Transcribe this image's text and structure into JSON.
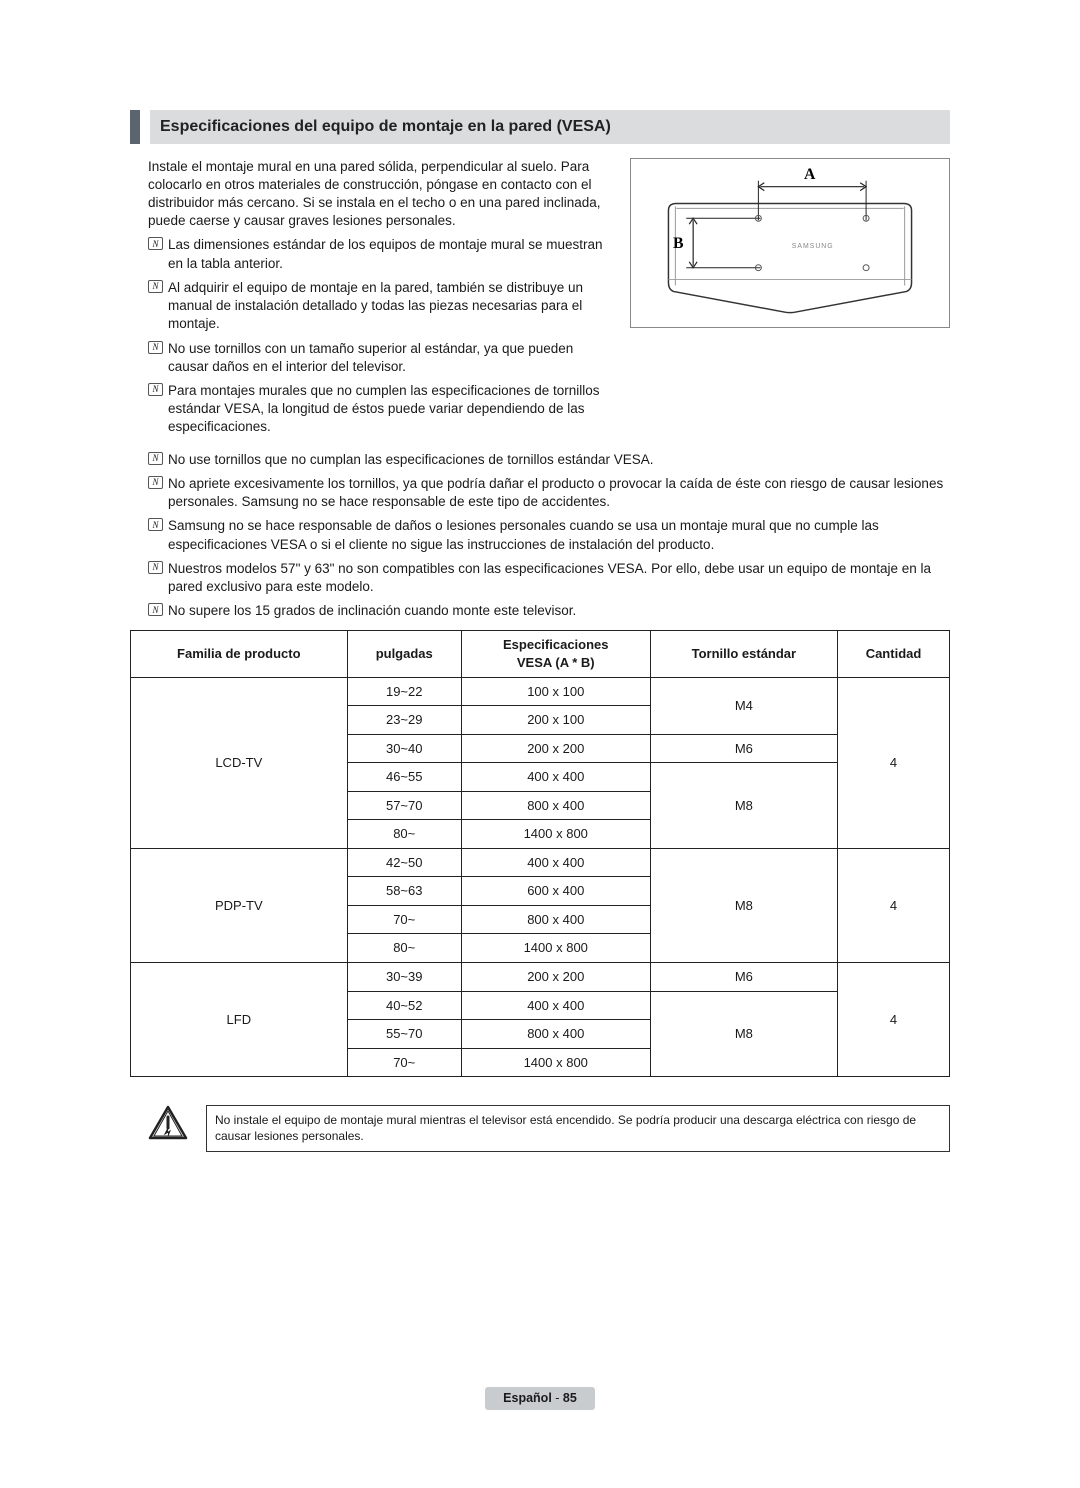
{
  "title": "Especificaciones del equipo de montaje en la pared (VESA)",
  "intro": "Instale el montaje mural en una pared sólida, perpendicular al suelo. Para colocarlo en otros materiales de construcción, póngase en contacto con el distribuidor más cercano. Si se instala en el techo o en una pared inclinada, puede caerse y causar graves lesiones personales.",
  "note_glyph": "N",
  "side_notes": [
    "Las dimensiones estándar de los equipos de montaje mural se muestran en la tabla anterior.",
    "Al adquirir el equipo de montaje en la pared, también se distribuye un manual de instalación detallado y todas las piezas necesarias para el montaje.",
    "No use tornillos con un tamaño superior al estándar, ya que pueden causar daños en el interior del televisor.",
    "Para montajes murales que no cumplen las especificaciones de tornillos estándar VESA, la longitud de éstos puede variar dependiendo de las especificaciones."
  ],
  "full_notes": [
    "No use tornillos que no cumplan las especificaciones de tornillos estándar VESA.",
    " No apriete excesivamente los tornillos, ya que podría dañar el producto o provocar la caída de éste con riesgo de causar lesiones personales. Samsung no se hace responsable de este tipo de accidentes.",
    "Samsung no se hace responsable de daños o lesiones personales cuando se usa un montaje mural que no cumple las especificaciones VESA o si el cliente no sigue las instrucciones de instalación del producto.",
    "Nuestros modelos 57\" y 63\" no son compatibles con las especificaciones VESA. Por ello, debe usar un equipo de montaje en la pared exclusivo para este modelo.",
    "No supere los 15 grados de inclinación cuando monte este televisor."
  ],
  "diagram": {
    "label_a": "A",
    "label_b": "B",
    "brand": "SAMSUNG"
  },
  "table": {
    "headers": {
      "family": "Familia de producto",
      "inches": "pulgadas",
      "vesa_top": "Especificaciones",
      "vesa_bottom": "VESA (A * B)",
      "screw": "Tornillo estándar",
      "qty": "Cantidad"
    },
    "groups": [
      {
        "family": "LCD-TV",
        "qty": "4",
        "rows": [
          {
            "inches": "19~22",
            "vesa": "100 x 100",
            "screw": "M4",
            "screw_span": 2
          },
          {
            "inches": "23~29",
            "vesa": "200 x 100"
          },
          {
            "inches": "30~40",
            "vesa": "200 x 200",
            "screw": "M6",
            "screw_span": 1
          },
          {
            "inches": "46~55",
            "vesa": "400 x 400",
            "screw": "M8",
            "screw_span": 3
          },
          {
            "inches": "57~70",
            "vesa": "800 x 400"
          },
          {
            "inches": "80~",
            "vesa": "1400 x 800"
          }
        ]
      },
      {
        "family": "PDP-TV",
        "qty": "4",
        "rows": [
          {
            "inches": "42~50",
            "vesa": "400 x 400",
            "screw": "M8",
            "screw_span": 4
          },
          {
            "inches": "58~63",
            "vesa": "600 x 400"
          },
          {
            "inches": "70~",
            "vesa": "800 x 400"
          },
          {
            "inches": "80~",
            "vesa": "1400 x 800"
          }
        ]
      },
      {
        "family": "LFD",
        "qty": "4",
        "rows": [
          {
            "inches": "30~39",
            "vesa": "200 x 200",
            "screw": "M6",
            "screw_span": 1
          },
          {
            "inches": "40~52",
            "vesa": "400 x 400",
            "screw": "M8",
            "screw_span": 3
          },
          {
            "inches": "55~70",
            "vesa": "800 x 400"
          },
          {
            "inches": "70~",
            "vesa": "1400 x 800"
          }
        ]
      }
    ]
  },
  "warning": "No instale el equipo de montaje mural mientras el televisor está encendido. Se podría producir una descarga eléctrica con riesgo de causar lesiones personales.",
  "footer": {
    "lang": "Español",
    "sep": " - ",
    "page": "85"
  }
}
